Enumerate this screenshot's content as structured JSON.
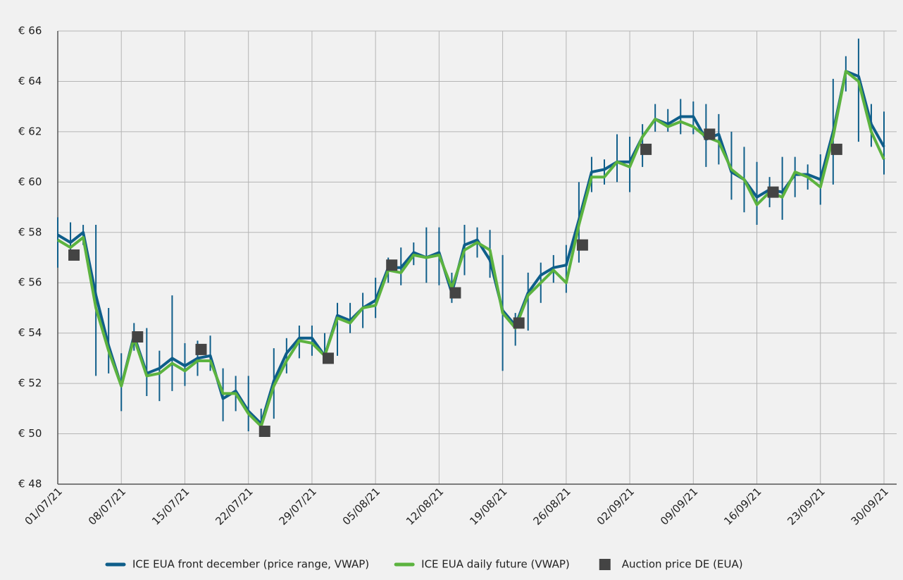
{
  "chart_data": {
    "type": "line",
    "categories": [
      "01/07/21",
      null,
      null,
      null,
      null,
      "08/07/21",
      null,
      null,
      null,
      null,
      "15/07/21",
      null,
      null,
      null,
      null,
      "22/07/21",
      null,
      null,
      null,
      null,
      "29/07/21",
      null,
      null,
      null,
      null,
      "05/08/21",
      null,
      null,
      null,
      null,
      "12/08/21",
      null,
      null,
      null,
      null,
      "19/08/21",
      null,
      null,
      null,
      null,
      "26/08/21",
      null,
      null,
      null,
      null,
      "02/09/21",
      null,
      null,
      null,
      null,
      "09/09/21",
      null,
      null,
      null,
      null,
      "16/09/21",
      null,
      null,
      null,
      null,
      "23/09/21",
      null,
      null,
      null,
      null,
      "30/09/21"
    ],
    "series": [
      {
        "name": "ICE EUA front december (price range, VWAP)",
        "color": "#0f5e8a",
        "marker": "range",
        "values": [
          57.9,
          57.6,
          58.0,
          55.5,
          53.5,
          51.9,
          53.9,
          52.4,
          52.6,
          53.0,
          52.7,
          53.0,
          53.1,
          51.4,
          51.7,
          50.9,
          50.4,
          52.1,
          53.2,
          53.8,
          53.8,
          53.1,
          54.7,
          54.5,
          55.0,
          55.3,
          56.6,
          56.6,
          57.2,
          57.0,
          57.2,
          55.6,
          57.5,
          57.7,
          56.9,
          54.9,
          54.3,
          55.6,
          56.3,
          56.6,
          56.7,
          58.5,
          60.4,
          60.5,
          60.8,
          60.8,
          61.8,
          62.5,
          62.3,
          62.6,
          62.6,
          61.7,
          61.9,
          60.4,
          60.1,
          59.4,
          59.7,
          59.6,
          60.3,
          60.3,
          60.1,
          62.0,
          64.4,
          64.2,
          62.3,
          61.4
        ],
        "high": [
          58.6,
          58.4,
          58.3,
          58.3,
          55.0,
          53.2,
          54.4,
          54.2,
          53.3,
          55.5,
          53.6,
          53.7,
          53.9,
          52.6,
          52.3,
          52.3,
          51.0,
          53.4,
          53.8,
          54.3,
          54.3,
          54.0,
          55.2,
          55.2,
          55.6,
          56.2,
          57.0,
          57.4,
          57.6,
          58.2,
          58.2,
          56.4,
          58.3,
          58.2,
          58.1,
          57.1,
          54.8,
          56.4,
          56.8,
          57.1,
          57.5,
          60.0,
          61.0,
          60.9,
          61.9,
          61.8,
          62.3,
          63.1,
          62.9,
          63.3,
          63.2,
          63.1,
          62.7,
          62.0,
          61.4,
          60.8,
          60.2,
          61.0,
          61.0,
          60.7,
          61.1,
          64.1,
          65.0,
          65.7,
          63.1,
          62.8
        ],
        "low": [
          56.6,
          57.0,
          57.5,
          52.3,
          52.4,
          50.9,
          53.3,
          51.5,
          51.3,
          51.7,
          51.9,
          52.3,
          52.5,
          50.5,
          50.9,
          50.1,
          50.1,
          50.6,
          52.4,
          53.0,
          53.1,
          53.0,
          53.1,
          54.0,
          54.2,
          54.6,
          56.0,
          55.9,
          56.7,
          56.0,
          55.9,
          55.2,
          56.3,
          57.0,
          56.2,
          52.5,
          53.5,
          54.1,
          55.2,
          56.0,
          55.6,
          56.8,
          59.6,
          59.9,
          60.0,
          59.6,
          60.6,
          62.0,
          62.0,
          61.9,
          61.9,
          60.6,
          60.7,
          59.3,
          58.8,
          58.3,
          59.0,
          58.5,
          59.4,
          59.7,
          59.1,
          59.9,
          63.6,
          61.6,
          61.4,
          60.3
        ]
      },
      {
        "name": "ICE EUA daily future (VWAP)",
        "color": "#5cb33f",
        "marker": "line",
        "values": [
          57.7,
          57.4,
          57.8,
          55.0,
          53.3,
          51.9,
          53.8,
          52.3,
          52.4,
          52.8,
          52.5,
          52.9,
          52.9,
          51.6,
          51.6,
          50.8,
          50.3,
          51.9,
          52.9,
          53.7,
          53.6,
          53.1,
          54.6,
          54.4,
          55.0,
          55.1,
          56.5,
          56.4,
          57.1,
          57.0,
          57.1,
          55.8,
          57.3,
          57.6,
          57.3,
          54.8,
          54.2,
          55.5,
          56.0,
          56.5,
          56.0,
          58.3,
          60.2,
          60.2,
          60.8,
          60.6,
          61.8,
          62.5,
          62.2,
          62.4,
          62.2,
          61.8,
          61.6,
          60.5,
          60.1,
          59.1,
          59.6,
          59.4,
          60.4,
          60.2,
          59.8,
          61.8,
          64.4,
          64.0,
          62.0,
          60.9
        ]
      },
      {
        "name": "Auction price DE (EUA)",
        "color": "#444444",
        "marker": "square",
        "values": [
          null,
          57.1,
          null,
          null,
          null,
          null,
          53.85,
          null,
          null,
          null,
          null,
          53.35,
          null,
          null,
          null,
          null,
          50.1,
          null,
          null,
          null,
          null,
          53.0,
          null,
          null,
          null,
          null,
          56.7,
          null,
          null,
          null,
          null,
          55.6,
          null,
          null,
          null,
          null,
          54.4,
          null,
          null,
          null,
          null,
          57.5,
          null,
          null,
          null,
          null,
          61.3,
          null,
          null,
          null,
          null,
          61.9,
          null,
          null,
          null,
          null,
          59.6,
          null,
          null,
          null,
          null,
          61.3,
          null,
          null,
          null,
          null
        ]
      }
    ],
    "ylim": [
      48,
      66
    ],
    "yticks": [
      {
        "value": 48,
        "label": "€ 48"
      },
      {
        "value": 50,
        "label": "€ 50"
      },
      {
        "value": 52,
        "label": "€ 52"
      },
      {
        "value": 54,
        "label": "€ 54"
      },
      {
        "value": 56,
        "label": "€ 56"
      },
      {
        "value": 58,
        "label": "€ 58"
      },
      {
        "value": 60,
        "label": "€ 60"
      },
      {
        "value": 62,
        "label": "€ 62"
      },
      {
        "value": 64,
        "label": "€ 64"
      },
      {
        "value": 66,
        "label": "€ 66"
      }
    ],
    "grid": true,
    "legend": "bottom"
  }
}
